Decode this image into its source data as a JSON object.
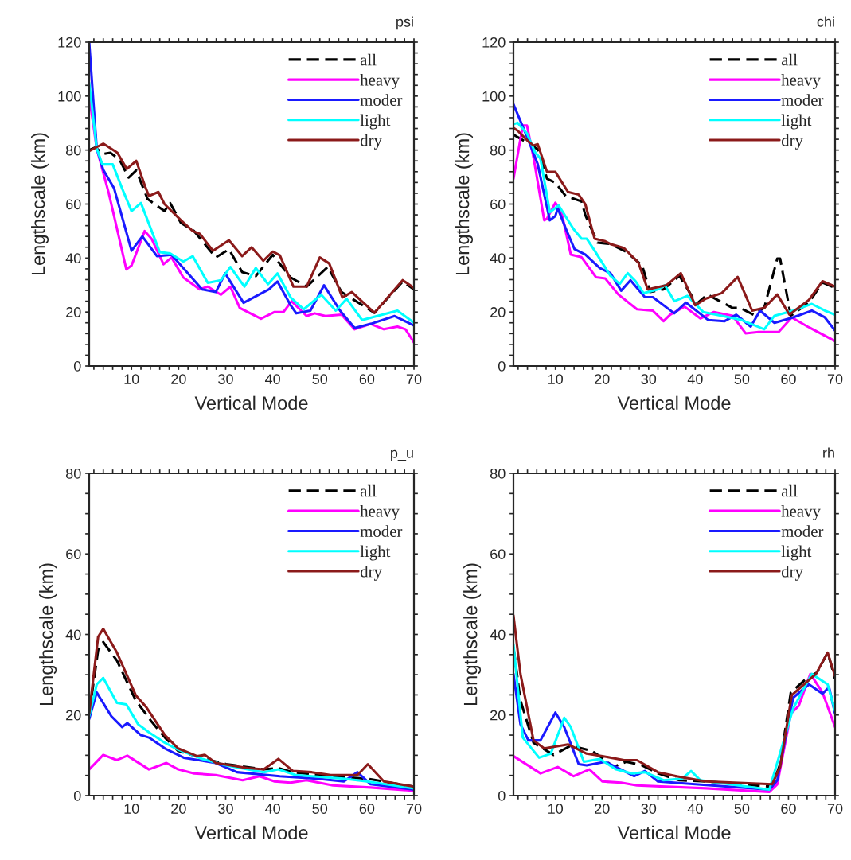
{
  "chart_data": [
    {
      "type": "line",
      "title": "psi",
      "xlabel": "Vertical Mode",
      "ylabel": "Lengthscale (km)",
      "xlim": [
        1,
        70
      ],
      "ylim": [
        0,
        120
      ],
      "legend": "top right",
      "grid": false,
      "xticks": [
        {
          "value": 2,
          "label": null
        },
        {
          "value": 4,
          "label": null
        },
        {
          "value": 6,
          "label": null
        },
        {
          "value": 8,
          "label": null
        },
        10,
        {
          "value": 12,
          "label": null
        },
        {
          "value": 14,
          "label": null
        },
        {
          "value": 16,
          "label": null
        },
        {
          "value": 18,
          "label": null
        },
        20,
        {
          "value": 22,
          "label": null
        },
        {
          "value": 24,
          "label": null
        },
        {
          "value": 26,
          "label": null
        },
        {
          "value": 28,
          "label": null
        },
        30,
        {
          "value": 32,
          "label": null
        },
        {
          "value": 34,
          "label": null
        },
        {
          "value": 36,
          "label": null
        },
        {
          "value": 38,
          "label": null
        },
        40,
        {
          "value": 42,
          "label": null
        },
        {
          "value": 44,
          "label": null
        },
        {
          "value": 46,
          "label": null
        },
        {
          "value": 48,
          "label": null
        },
        50,
        {
          "value": 52,
          "label": null
        },
        {
          "value": 54,
          "label": null
        },
        {
          "value": 56,
          "label": null
        },
        {
          "value": 58,
          "label": null
        },
        60,
        {
          "value": 62,
          "label": null
        },
        {
          "value": 64,
          "label": null
        },
        {
          "value": 66,
          "label": null
        },
        {
          "value": 68,
          "label": null
        },
        70
      ],
      "yticks": [
        0,
        {
          "value": 4,
          "label": null
        },
        {
          "value": 8,
          "label": null
        },
        {
          "value": 12,
          "label": null
        },
        {
          "value": 16,
          "label": null
        },
        20,
        {
          "value": 24,
          "label": null
        },
        {
          "value": 28,
          "label": null
        },
        {
          "value": 32,
          "label": null
        },
        {
          "value": 36,
          "label": null
        },
        40,
        {
          "value": 44,
          "label": null
        },
        {
          "value": 48,
          "label": null
        },
        {
          "value": 52,
          "label": null
        },
        {
          "value": 56,
          "label": null
        },
        60,
        {
          "value": 64,
          "label": null
        },
        {
          "value": 68,
          "label": null
        },
        {
          "value": 72,
          "label": null
        },
        {
          "value": 76,
          "label": null
        },
        80,
        {
          "value": 84,
          "label": null
        },
        {
          "value": 88,
          "label": null
        },
        {
          "value": 92,
          "label": null
        },
        {
          "value": 96,
          "label": null
        },
        100,
        {
          "value": 104,
          "label": null
        },
        {
          "value": 108,
          "label": null
        },
        {
          "value": 112,
          "label": null
        },
        {
          "value": 116,
          "label": null
        },
        120
      ],
      "series": [
        {
          "name": "all",
          "color": "#000000",
          "line_style": "dashed",
          "x": [
            1,
            2.3,
            4,
            5.5,
            7.4,
            9.4,
            11,
            13.4,
            15.4,
            17,
            18.2,
            20.5,
            23.3,
            27.9,
            30.7,
            33.5,
            36.4,
            40,
            43.8,
            47.2,
            51.7,
            54.6,
            61.6,
            67.6,
            70
          ],
          "values": [
            80,
            81,
            78.6,
            79,
            76.6,
            69.8,
            72.5,
            61.9,
            59.4,
            57.4,
            60.4,
            53,
            50,
            40.2,
            43.2,
            34.8,
            33.3,
            41.2,
            32.8,
            29.4,
            36.7,
            27.4,
            19.7,
            31.3,
            28.4
          ]
        },
        {
          "name": "heavy",
          "color": "#ff00ff",
          "line_style": "solid",
          "x": [
            1,
            2.6,
            5.2,
            8.9,
            10,
            12.8,
            14.3,
            16.8,
            18.5,
            21,
            24.5,
            26.2,
            29,
            31,
            33,
            37.5,
            40.4,
            42.3,
            44,
            47.2,
            48.9,
            51.2,
            54.6,
            57.4,
            60.8,
            63.6,
            66.5,
            68.2,
            70
          ],
          "values": [
            100,
            80.6,
            63.8,
            35.8,
            37.2,
            50,
            47,
            37.7,
            40.2,
            32.8,
            28.4,
            29.4,
            26.4,
            29.4,
            21.5,
            17.5,
            20,
            20,
            24,
            18.5,
            19.5,
            18.5,
            19,
            13.6,
            15.6,
            13.6,
            14.6,
            13.6,
            8.7
          ]
        },
        {
          "name": "moder",
          "color": "#1a1aff",
          "line_style": "solid",
          "x": [
            1,
            2.6,
            4,
            6.3,
            10,
            12.3,
            15.4,
            18.5,
            25,
            27.9,
            29.9,
            33.8,
            39.2,
            41,
            43.8,
            45,
            48,
            50.9,
            54.3,
            57.4,
            60.8,
            65.9,
            70
          ],
          "values": [
            120,
            80.6,
            72.7,
            65.8,
            42.7,
            48,
            40.7,
            41.2,
            28.4,
            27.4,
            34.3,
            23.4,
            28.4,
            31.3,
            22.5,
            19.5,
            20.5,
            29.9,
            20.5,
            14.1,
            15.6,
            18.5,
            15
          ]
        },
        {
          "name": "light",
          "color": "#00ffff",
          "line_style": "solid",
          "x": [
            1,
            2.6,
            3.8,
            6,
            8,
            10,
            12,
            16,
            18.2,
            21,
            23,
            26.2,
            29,
            31,
            34,
            36.4,
            39,
            41,
            43.8,
            46.6,
            50.3,
            53.4,
            55.7,
            59,
            66.5,
            70
          ],
          "values": [
            105,
            80.6,
            74.7,
            74.7,
            65.8,
            57.4,
            60.4,
            42.2,
            41.7,
            38.7,
            40.7,
            30.8,
            31.8,
            36.7,
            29.4,
            36.3,
            30.3,
            34.3,
            25.4,
            21,
            26.4,
            20.5,
            24.9,
            17,
            20.5,
            16
          ]
        },
        {
          "name": "dry",
          "color": "#8b1a1a",
          "line_style": "solid",
          "x": [
            1,
            4,
            7,
            9,
            11,
            13,
            13.7,
            15.7,
            17,
            20.5,
            23,
            24.5,
            27.3,
            30.7,
            33.5,
            35.5,
            38,
            40,
            41.5,
            44.4,
            47.2,
            50,
            52,
            54.8,
            56.8,
            61.6,
            67.6,
            70
          ],
          "values": [
            79.6,
            82.4,
            79,
            73,
            76,
            66,
            63,
            64.5,
            60,
            54,
            50,
            49,
            42.7,
            46.6,
            40.7,
            44,
            39,
            42.4,
            41,
            29.4,
            29.4,
            40.2,
            38,
            25.4,
            27.4,
            19.7,
            31.8,
            28.9
          ]
        }
      ]
    },
    {
      "type": "line",
      "title": "chi",
      "xlabel": "Vertical Mode",
      "ylabel": "Lengthscale (km)",
      "xlim": [
        1,
        70
      ],
      "ylim": [
        0,
        120
      ],
      "legend": "top right",
      "grid": false,
      "xticks": [
        {
          "value": 2,
          "label": null
        },
        {
          "value": 4,
          "label": null
        },
        {
          "value": 6,
          "label": null
        },
        {
          "value": 8,
          "label": null
        },
        10,
        {
          "value": 12,
          "label": null
        },
        {
          "value": 14,
          "label": null
        },
        {
          "value": 16,
          "label": null
        },
        {
          "value": 18,
          "label": null
        },
        20,
        {
          "value": 22,
          "label": null
        },
        {
          "value": 24,
          "label": null
        },
        {
          "value": 26,
          "label": null
        },
        {
          "value": 28,
          "label": null
        },
        30,
        {
          "value": 32,
          "label": null
        },
        {
          "value": 34,
          "label": null
        },
        {
          "value": 36,
          "label": null
        },
        {
          "value": 38,
          "label": null
        },
        40,
        {
          "value": 42,
          "label": null
        },
        {
          "value": 44,
          "label": null
        },
        {
          "value": 46,
          "label": null
        },
        {
          "value": 48,
          "label": null
        },
        50,
        {
          "value": 52,
          "label": null
        },
        {
          "value": 54,
          "label": null
        },
        {
          "value": 56,
          "label": null
        },
        {
          "value": 58,
          "label": null
        },
        60,
        {
          "value": 62,
          "label": null
        },
        {
          "value": 64,
          "label": null
        },
        {
          "value": 66,
          "label": null
        },
        {
          "value": 68,
          "label": null
        },
        70
      ],
      "yticks": [
        0,
        {
          "value": 4,
          "label": null
        },
        {
          "value": 8,
          "label": null
        },
        {
          "value": 12,
          "label": null
        },
        {
          "value": 16,
          "label": null
        },
        20,
        {
          "value": 24,
          "label": null
        },
        {
          "value": 28,
          "label": null
        },
        {
          "value": 32,
          "label": null
        },
        {
          "value": 36,
          "label": null
        },
        40,
        {
          "value": 44,
          "label": null
        },
        {
          "value": 48,
          "label": null
        },
        {
          "value": 52,
          "label": null
        },
        {
          "value": 56,
          "label": null
        },
        60,
        {
          "value": 64,
          "label": null
        },
        {
          "value": 68,
          "label": null
        },
        {
          "value": 72,
          "label": null
        },
        {
          "value": 76,
          "label": null
        },
        80,
        {
          "value": 84,
          "label": null
        },
        {
          "value": 88,
          "label": null
        },
        {
          "value": 92,
          "label": null
        },
        {
          "value": 96,
          "label": null
        },
        100,
        {
          "value": 104,
          "label": null
        },
        {
          "value": 108,
          "label": null
        },
        {
          "value": 112,
          "label": null
        },
        {
          "value": 116,
          "label": null
        },
        120
      ],
      "series": [
        {
          "name": "all",
          "color": "#000000",
          "line_style": "dashed",
          "x": [
            1,
            3,
            6.2,
            8.2,
            10,
            12.2,
            15.6,
            16.4,
            19,
            21.8,
            25.2,
            28.6,
            30.3,
            33.2,
            36.6,
            40.3,
            42.6,
            48,
            49.7,
            52.5,
            54.8,
            57.6,
            58.2,
            60.5,
            64.4,
            67.3,
            70
          ],
          "values": [
            85.7,
            83.7,
            80.3,
            69.4,
            67.9,
            63,
            61,
            56,
            45.7,
            45.2,
            42.3,
            37.3,
            27.4,
            28.4,
            33.4,
            23,
            26.5,
            21.5,
            21.5,
            19,
            21.5,
            39.8,
            39.8,
            18.6,
            23.5,
            30.9,
            28.9
          ]
        },
        {
          "name": "heavy",
          "color": "#ff00ff",
          "line_style": "solid",
          "x": [
            1,
            3,
            3.9,
            5.3,
            7.6,
            8.2,
            10,
            11.3,
            13.3,
            15.6,
            18.7,
            20.7,
            23.5,
            27.5,
            30.9,
            33.2,
            34.6,
            37.7,
            41.1,
            44,
            48,
            50.8,
            53.6,
            57.9,
            60.7,
            64.1,
            70
          ],
          "values": [
            69.4,
            89.1,
            89.1,
            77.3,
            54,
            54.6,
            60.5,
            57,
            41.3,
            40.3,
            32.9,
            32.4,
            26.5,
            21,
            20.5,
            16.6,
            19,
            22,
            17.6,
            20,
            18.6,
            12.1,
            12.6,
            12.6,
            18,
            14.6,
            9.2
          ]
        },
        {
          "name": "moder",
          "color": "#1a1aff",
          "line_style": "solid",
          "x": [
            1,
            4.2,
            6.2,
            8.8,
            10,
            10.5,
            12.2,
            14.1,
            16.4,
            19.5,
            21.8,
            24.1,
            26.1,
            29.2,
            30.9,
            35.5,
            38,
            42.8,
            46.3,
            48.8,
            51.9,
            53.9,
            57,
            61,
            65,
            67.8,
            70
          ],
          "values": [
            97,
            83.7,
            74.8,
            54,
            55.6,
            58.5,
            51,
            43.3,
            41.3,
            36.3,
            34.4,
            27.9,
            31.8,
            25.5,
            25.5,
            19.5,
            23.5,
            17,
            16.6,
            19,
            14.6,
            20.5,
            16,
            18,
            20.5,
            18,
            13.1
          ]
        },
        {
          "name": "light",
          "color": "#00ffff",
          "line_style": "solid",
          "x": [
            1,
            1.9,
            3.9,
            5.6,
            6.8,
            8.8,
            10.7,
            13.9,
            15.6,
            16.7,
            18.4,
            21.8,
            23.8,
            25.5,
            27.2,
            28.9,
            32,
            33.5,
            35.5,
            38.3,
            41.7,
            45.7,
            50,
            54.8,
            57,
            61,
            65,
            67.8,
            70
          ],
          "values": [
            89.6,
            90.1,
            86.2,
            79.3,
            76.8,
            57,
            59.5,
            50.7,
            47.2,
            47.2,
            42.8,
            33.4,
            30.4,
            34.4,
            31.4,
            27,
            28.4,
            29.9,
            24,
            26,
            20,
            18.6,
            17,
            13.6,
            18.6,
            20.5,
            23,
            20.5,
            19
          ]
        },
        {
          "name": "dry",
          "color": "#8b1a1a",
          "line_style": "solid",
          "x": [
            1,
            1.9,
            4.2,
            5.3,
            6.2,
            8.2,
            10,
            12.7,
            15,
            16.4,
            18.4,
            20.7,
            21.8,
            24.7,
            27.8,
            29.8,
            33.8,
            36.9,
            40,
            42.3,
            45.7,
            49.1,
            52.2,
            54.8,
            57.6,
            60.2,
            64.4,
            67.3,
            70
          ],
          "values": [
            88.2,
            87.2,
            83.2,
            81.7,
            82.2,
            71.9,
            71.9,
            64.5,
            63.5,
            60,
            47.2,
            46.2,
            45.2,
            43.7,
            38.3,
            28.4,
            29.9,
            34.4,
            22.5,
            25,
            27,
            33,
            20.5,
            21.5,
            26.5,
            19,
            24.5,
            31.4,
            29.4
          ]
        }
      ]
    },
    {
      "type": "line",
      "title": "p_u",
      "xlabel": "Vertical Mode",
      "ylabel": "Lengthscale (km)",
      "xlim": [
        1,
        70
      ],
      "ylim": [
        0,
        80
      ],
      "legend": "top right",
      "grid": false,
      "xticks": [
        {
          "value": 2,
          "label": null
        },
        {
          "value": 4,
          "label": null
        },
        {
          "value": 6,
          "label": null
        },
        {
          "value": 8,
          "label": null
        },
        10,
        {
          "value": 12,
          "label": null
        },
        {
          "value": 14,
          "label": null
        },
        {
          "value": 16,
          "label": null
        },
        {
          "value": 18,
          "label": null
        },
        20,
        {
          "value": 22,
          "label": null
        },
        {
          "value": 24,
          "label": null
        },
        {
          "value": 26,
          "label": null
        },
        {
          "value": 28,
          "label": null
        },
        30,
        {
          "value": 32,
          "label": null
        },
        {
          "value": 34,
          "label": null
        },
        {
          "value": 36,
          "label": null
        },
        {
          "value": 38,
          "label": null
        },
        40,
        {
          "value": 42,
          "label": null
        },
        {
          "value": 44,
          "label": null
        },
        {
          "value": 46,
          "label": null
        },
        {
          "value": 48,
          "label": null
        },
        50,
        {
          "value": 52,
          "label": null
        },
        {
          "value": 54,
          "label": null
        },
        {
          "value": 56,
          "label": null
        },
        {
          "value": 58,
          "label": null
        },
        60,
        {
          "value": 62,
          "label": null
        },
        {
          "value": 64,
          "label": null
        },
        {
          "value": 66,
          "label": null
        },
        {
          "value": 68,
          "label": null
        },
        70
      ],
      "yticks": [
        0,
        {
          "value": 5,
          "label": null
        },
        {
          "value": 10,
          "label": null
        },
        {
          "value": 15,
          "label": null
        },
        20,
        {
          "value": 25,
          "label": null
        },
        {
          "value": 30,
          "label": null
        },
        {
          "value": 35,
          "label": null
        },
        40,
        {
          "value": 45,
          "label": null
        },
        {
          "value": 50,
          "label": null
        },
        {
          "value": 55,
          "label": null
        },
        60,
        {
          "value": 65,
          "label": null
        },
        {
          "value": 70,
          "label": null
        },
        {
          "value": 75,
          "label": null
        },
        80
      ],
      "series": [
        {
          "name": "all",
          "color": "#000000",
          "line_style": "dashed",
          "x": [
            1,
            2.9,
            4,
            6.9,
            10.9,
            14.3,
            17.1,
            19.9,
            25.6,
            30.1,
            38.1,
            41.2,
            44.3,
            52.3,
            60,
            70
          ],
          "values": [
            20.3,
            36.1,
            38.1,
            33.5,
            23.6,
            18.3,
            14.4,
            11.1,
            9.1,
            7.8,
            6.5,
            6.8,
            5.8,
            4.8,
            4.2,
            2.2
          ]
        },
        {
          "name": "heavy",
          "color": "#ff00ff",
          "line_style": "solid",
          "x": [
            1,
            4,
            6.9,
            9.1,
            13.7,
            17.4,
            19.9,
            23.3,
            27.9,
            33.6,
            37.2,
            40.4,
            43.8,
            47.2,
            52.8,
            60.8,
            70
          ],
          "values": [
            6.5,
            10.1,
            8.8,
            9.9,
            6.5,
            8.1,
            6.5,
            5.5,
            5.1,
            3.8,
            4.8,
            3.5,
            3.2,
            3.8,
            2.5,
            2,
            1.2
          ]
        },
        {
          "name": "moder",
          "color": "#1a1aff",
          "line_style": "solid",
          "x": [
            1,
            2.6,
            5.7,
            8,
            9.1,
            12,
            13.7,
            17.1,
            21.1,
            27.9,
            32.4,
            41.5,
            49.4,
            55.1,
            58,
            60.8,
            70
          ],
          "values": [
            19,
            25.6,
            19.7,
            17,
            18,
            15,
            14.4,
            11.7,
            9.4,
            8.1,
            5.8,
            4.8,
            4.2,
            3.5,
            5.8,
            2.8,
            1.5
          ]
        },
        {
          "name": "light",
          "color": "#00ffff",
          "line_style": "solid",
          "x": [
            1,
            2.6,
            4,
            6.9,
            8.9,
            11.4,
            13.7,
            17.1,
            19.9,
            25,
            30.1,
            38.1,
            41.2,
            44.9,
            55.1,
            60,
            70
          ],
          "values": [
            19.7,
            27.6,
            29.2,
            23,
            22.6,
            17.7,
            15.7,
            13.1,
            11.4,
            9.1,
            7.5,
            5.8,
            6.5,
            5.1,
            4.2,
            3.5,
            1.8
          ]
        },
        {
          "name": "dry",
          "color": "#8b1a1a",
          "line_style": "solid",
          "x": [
            1,
            2.9,
            4,
            6.9,
            10.9,
            13.1,
            17.1,
            19.9,
            23.9,
            25.6,
            27.9,
            34.7,
            38.1,
            41.2,
            44.3,
            48.3,
            52.3,
            58,
            60.2,
            63.6,
            70
          ],
          "values": [
            20.3,
            39.4,
            41.4,
            35.5,
            24.9,
            22,
            15,
            11.7,
            9.8,
            10.1,
            8.1,
            6.8,
            6.5,
            9.1,
            6.1,
            5.8,
            5.1,
            5.1,
            7.8,
            3.5,
            2.2
          ]
        }
      ]
    },
    {
      "type": "line",
      "title": "rh",
      "xlabel": "Vertical Mode",
      "ylabel": "Lengthscale (km)",
      "xlim": [
        1,
        70
      ],
      "ylim": [
        0,
        80
      ],
      "legend": "top right",
      "grid": false,
      "xticks": [
        {
          "value": 2,
          "label": null
        },
        {
          "value": 4,
          "label": null
        },
        {
          "value": 6,
          "label": null
        },
        {
          "value": 8,
          "label": null
        },
        10,
        {
          "value": 12,
          "label": null
        },
        {
          "value": 14,
          "label": null
        },
        {
          "value": 16,
          "label": null
        },
        {
          "value": 18,
          "label": null
        },
        20,
        {
          "value": 22,
          "label": null
        },
        {
          "value": 24,
          "label": null
        },
        {
          "value": 26,
          "label": null
        },
        {
          "value": 28,
          "label": null
        },
        30,
        {
          "value": 32,
          "label": null
        },
        {
          "value": 34,
          "label": null
        },
        {
          "value": 36,
          "label": null
        },
        {
          "value": 38,
          "label": null
        },
        40,
        {
          "value": 42,
          "label": null
        },
        {
          "value": 44,
          "label": null
        },
        {
          "value": 46,
          "label": null
        },
        {
          "value": 48,
          "label": null
        },
        50,
        {
          "value": 52,
          "label": null
        },
        {
          "value": 54,
          "label": null
        },
        {
          "value": 56,
          "label": null
        },
        {
          "value": 58,
          "label": null
        },
        60,
        {
          "value": 62,
          "label": null
        },
        {
          "value": 64,
          "label": null
        },
        {
          "value": 66,
          "label": null
        },
        {
          "value": 68,
          "label": null
        },
        70
      ],
      "yticks": [
        0,
        {
          "value": 5,
          "label": null
        },
        {
          "value": 10,
          "label": null
        },
        {
          "value": 15,
          "label": null
        },
        20,
        {
          "value": 25,
          "label": null
        },
        {
          "value": 30,
          "label": null
        },
        {
          "value": 35,
          "label": null
        },
        40,
        {
          "value": 45,
          "label": null
        },
        {
          "value": 50,
          "label": null
        },
        {
          "value": 55,
          "label": null
        },
        60,
        {
          "value": 65,
          "label": null
        },
        {
          "value": 70,
          "label": null
        },
        {
          "value": 75,
          "label": null
        },
        80
      ],
      "series": [
        {
          "name": "all",
          "color": "#000000",
          "line_style": "dashed",
          "x": [
            1,
            2.5,
            5.3,
            9.6,
            13.3,
            17.8,
            20.7,
            22.4,
            25.2,
            28.6,
            32,
            36.6,
            42.3,
            56.5,
            58.2,
            60.5,
            64.4,
            66.1,
            68.4,
            70
          ],
          "values": [
            36.8,
            23.6,
            13.1,
            10.1,
            12.4,
            11.1,
            8.8,
            7.1,
            8.4,
            7.5,
            5.5,
            3.8,
            3.5,
            2.2,
            7.8,
            25.6,
            29.6,
            30.5,
            35.5,
            28.9
          ]
        },
        {
          "name": "heavy",
          "color": "#ff00ff",
          "line_style": "solid",
          "x": [
            1,
            6.8,
            10.5,
            13.9,
            17.3,
            20.1,
            24.1,
            27.5,
            42.3,
            55.9,
            57.6,
            60.5,
            62.2,
            64.7,
            67.3,
            70
          ],
          "values": [
            9.8,
            5.5,
            7.1,
            4.8,
            6.5,
            3.5,
            3.2,
            2.5,
            1.8,
            0.9,
            2.8,
            20.3,
            22.3,
            30.2,
            25.6,
            17
          ]
        },
        {
          "name": "moder",
          "color": "#1a1aff",
          "line_style": "solid",
          "x": [
            1,
            2.5,
            4.2,
            6.8,
            10,
            11.9,
            15,
            16.7,
            20.7,
            23,
            26.9,
            29.2,
            32,
            40,
            55.9,
            57.6,
            61,
            64.4,
            67.3,
            68.7,
            70
          ],
          "values": [
            30.2,
            17.7,
            13.7,
            13.7,
            20.6,
            17,
            7.8,
            7.5,
            8.4,
            7.1,
            4.8,
            6.1,
            3.5,
            2.8,
            1.5,
            3.8,
            24.3,
            27.6,
            25.3,
            26.9,
            20.3
          ]
        },
        {
          "name": "light",
          "color": "#00ffff",
          "line_style": "solid",
          "x": [
            1,
            3,
            6.5,
            9,
            11.9,
            13.3,
            16.1,
            19.5,
            23,
            26.4,
            29.2,
            33.2,
            37.2,
            39.1,
            41.1,
            55.9,
            61,
            65,
            68.4,
            70
          ],
          "values": [
            37.5,
            14.4,
            9.4,
            10.4,
            19.3,
            17,
            8.4,
            9.1,
            6.5,
            5.5,
            5.8,
            3.8,
            4.2,
            6.1,
            3.8,
            1.5,
            21.6,
            30.2,
            27.6,
            21
          ]
        },
        {
          "name": "dry",
          "color": "#8b1a1a",
          "line_style": "solid",
          "x": [
            1,
            2.5,
            5.3,
            7.6,
            12.7,
            16.7,
            20.1,
            24.7,
            27.5,
            32,
            36,
            42.3,
            56.5,
            58.2,
            60.7,
            63.6,
            65.9,
            68.4,
            70
          ],
          "values": [
            44.7,
            30.2,
            13.7,
            11.7,
            12.7,
            10.4,
            9.8,
            8.8,
            8.8,
            5.8,
            4.8,
            3.5,
            2.8,
            7.1,
            24.9,
            27.9,
            30.2,
            35.5,
            29.6
          ]
        }
      ]
    }
  ]
}
